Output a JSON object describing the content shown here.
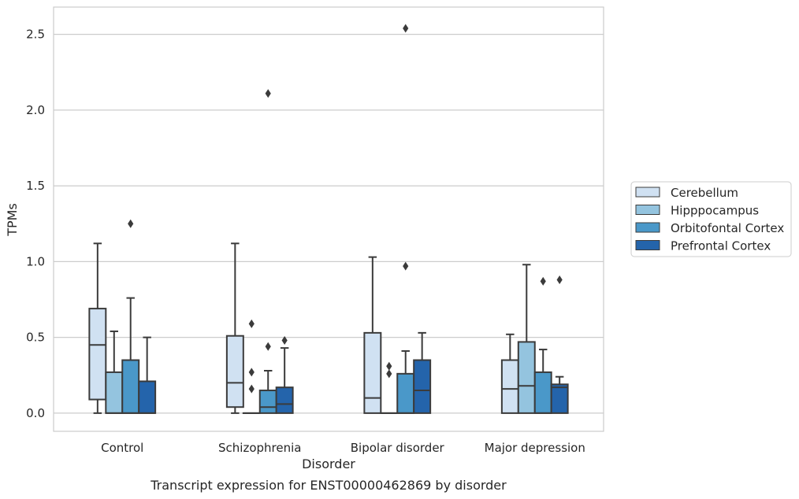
{
  "chart_data": {
    "type": "box",
    "title": "",
    "caption": "Transcript expression for ENST00000462869 by disorder",
    "xlabel": "Disorder",
    "ylabel": "TPMs",
    "ylim": [
      -0.12,
      2.68
    ],
    "yticks": [
      "0.0",
      "0.5",
      "1.0",
      "1.5",
      "2.0",
      "2.5"
    ],
    "ytick_values": [
      0,
      0.5,
      1.0,
      1.5,
      2.0,
      2.5
    ],
    "grid": true,
    "legend_position": "right",
    "categories": [
      "Control",
      "Schizophrenia",
      "Bipolar disorder",
      "Major depression"
    ],
    "series": [
      {
        "name": "Cerebellum",
        "color": "#d0e1f2",
        "boxes": [
          {
            "whisker_low": 0.0,
            "q1": 0.09,
            "median": 0.45,
            "q3": 0.69,
            "whisker_high": 1.12,
            "outliers": []
          },
          {
            "whisker_low": 0.0,
            "q1": 0.04,
            "median": 0.2,
            "q3": 0.51,
            "whisker_high": 1.12,
            "outliers": []
          },
          {
            "whisker_low": 0.0,
            "q1": 0.0,
            "median": 0.1,
            "q3": 0.53,
            "whisker_high": 1.03,
            "outliers": []
          },
          {
            "whisker_low": 0.0,
            "q1": 0.0,
            "median": 0.16,
            "q3": 0.35,
            "whisker_high": 0.52,
            "outliers": []
          }
        ]
      },
      {
        "name": "Hipppocampus",
        "color": "#94c4df",
        "boxes": [
          {
            "whisker_low": 0.0,
            "q1": 0.0,
            "median": 0.0,
            "q3": 0.27,
            "whisker_high": 0.54,
            "outliers": []
          },
          {
            "whisker_low": 0.0,
            "q1": 0.0,
            "median": 0.0,
            "q3": 0.0,
            "whisker_high": 0.0,
            "outliers": [
              0.59,
              0.27,
              0.16
            ]
          },
          {
            "whisker_low": 0.0,
            "q1": 0.0,
            "median": 0.0,
            "q3": 0.0,
            "whisker_high": 0.0,
            "outliers": [
              0.31,
              0.26
            ]
          },
          {
            "whisker_low": 0.0,
            "q1": 0.0,
            "median": 0.18,
            "q3": 0.47,
            "whisker_high": 0.98,
            "outliers": []
          }
        ]
      },
      {
        "name": "Orbitofontal Cortex",
        "color": "#4a98c9",
        "boxes": [
          {
            "whisker_low": 0.0,
            "q1": 0.0,
            "median": 0.0,
            "q3": 0.35,
            "whisker_high": 0.76,
            "outliers": [
              1.25
            ]
          },
          {
            "whisker_low": 0.0,
            "q1": 0.0,
            "median": 0.04,
            "q3": 0.15,
            "whisker_high": 0.28,
            "outliers": [
              2.11,
              0.44
            ]
          },
          {
            "whisker_low": 0.0,
            "q1": 0.0,
            "median": 0.0,
            "q3": 0.26,
            "whisker_high": 0.41,
            "outliers": [
              2.54,
              0.97
            ]
          },
          {
            "whisker_low": 0.0,
            "q1": 0.0,
            "median": 0.0,
            "q3": 0.27,
            "whisker_high": 0.42,
            "outliers": [
              0.87
            ]
          }
        ]
      },
      {
        "name": "Prefrontal Cortex",
        "color": "#2464ab",
        "boxes": [
          {
            "whisker_low": 0.0,
            "q1": 0.0,
            "median": 0.0,
            "q3": 0.21,
            "whisker_high": 0.5,
            "outliers": []
          },
          {
            "whisker_low": 0.0,
            "q1": 0.0,
            "median": 0.06,
            "q3": 0.17,
            "whisker_high": 0.43,
            "outliers": [
              0.48
            ]
          },
          {
            "whisker_low": 0.0,
            "q1": 0.0,
            "median": 0.15,
            "q3": 0.35,
            "whisker_high": 0.53,
            "outliers": []
          },
          {
            "whisker_low": 0.0,
            "q1": 0.0,
            "median": 0.17,
            "q3": 0.19,
            "whisker_high": 0.24,
            "outliers": [
              0.88
            ]
          }
        ]
      }
    ]
  },
  "colors": {
    "line": "#3b3b3b",
    "grid": "#cccccc",
    "frame": "#cccccc",
    "text": "#262626"
  }
}
